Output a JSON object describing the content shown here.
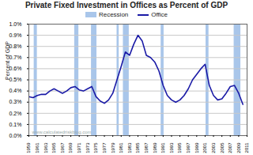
{
  "chart_data": {
    "type": "line",
    "title": "Private Fixed Investment in Offices as Percent of GDP",
    "y_label": "Percent of GDP",
    "annotations": [
      "www.calculatedriskblog.com"
    ],
    "x": [
      1959,
      1960,
      1961,
      1962,
      1963,
      1964,
      1965,
      1966,
      1967,
      1968,
      1969,
      1970,
      1971,
      1972,
      1973,
      1974,
      1975,
      1976,
      1977,
      1978,
      1979,
      1980,
      1981,
      1982,
      1983,
      1984,
      1985,
      1986,
      1987,
      1988,
      1989,
      1990,
      1991,
      1992,
      1993,
      1994,
      1995,
      1996,
      1997,
      1998,
      1999,
      2000,
      2001,
      2002,
      2003,
      2004,
      2005,
      2006,
      2007,
      2008,
      2009,
      2010
    ],
    "series": [
      {
        "name": "Office",
        "color": "#1a1aa6",
        "values": [
          0.35,
          0.34,
          0.36,
          0.37,
          0.37,
          0.4,
          0.42,
          0.4,
          0.38,
          0.4,
          0.43,
          0.44,
          0.41,
          0.4,
          0.42,
          0.44,
          0.35,
          0.31,
          0.29,
          0.32,
          0.38,
          0.5,
          0.62,
          0.75,
          0.72,
          0.82,
          0.9,
          0.85,
          0.72,
          0.7,
          0.66,
          0.58,
          0.45,
          0.36,
          0.32,
          0.3,
          0.32,
          0.36,
          0.42,
          0.5,
          0.55,
          0.6,
          0.64,
          0.45,
          0.36,
          0.32,
          0.33,
          0.38,
          0.44,
          0.45,
          0.38,
          0.28
        ]
      }
    ],
    "recessions": {
      "name": "Recession",
      "color": "#a9c6ea",
      "periods": [
        [
          1960.25,
          1961.0
        ],
        [
          1969.9,
          1970.9
        ],
        [
          1973.9,
          1975.2
        ],
        [
          1980.0,
          1980.5
        ],
        [
          1981.5,
          1982.9
        ],
        [
          1990.5,
          1991.2
        ],
        [
          2001.2,
          2001.9
        ],
        [
          2007.9,
          2009.5
        ]
      ]
    },
    "xlim": [
      1959,
      2011
    ],
    "xticks": [
      1959,
      1961,
      1963,
      1965,
      1967,
      1969,
      1971,
      1973,
      1975,
      1977,
      1979,
      1981,
      1983,
      1985,
      1987,
      1989,
      1991,
      1993,
      1995,
      1997,
      1999,
      2001,
      2003,
      2005,
      2007,
      2009,
      2011
    ],
    "ylim": [
      0,
      1.0
    ],
    "yticks": [
      {
        "value": 0,
        "label": "0.0%"
      },
      {
        "value": 0.1,
        "label": "0.1%"
      },
      {
        "value": 0.2,
        "label": "0.2%"
      },
      {
        "value": 0.3,
        "label": "0.3%"
      },
      {
        "value": 0.4,
        "label": "0.4%"
      },
      {
        "value": 0.5,
        "label": "0.5%"
      },
      {
        "value": 0.6,
        "label": "0.6%"
      },
      {
        "value": 0.7,
        "label": "0.7%"
      },
      {
        "value": 0.8,
        "label": "0.8%"
      },
      {
        "value": 0.9,
        "label": "0.9%"
      },
      {
        "value": 1.0,
        "label": "1.0%"
      }
    ],
    "grid": true,
    "legend": "top"
  }
}
